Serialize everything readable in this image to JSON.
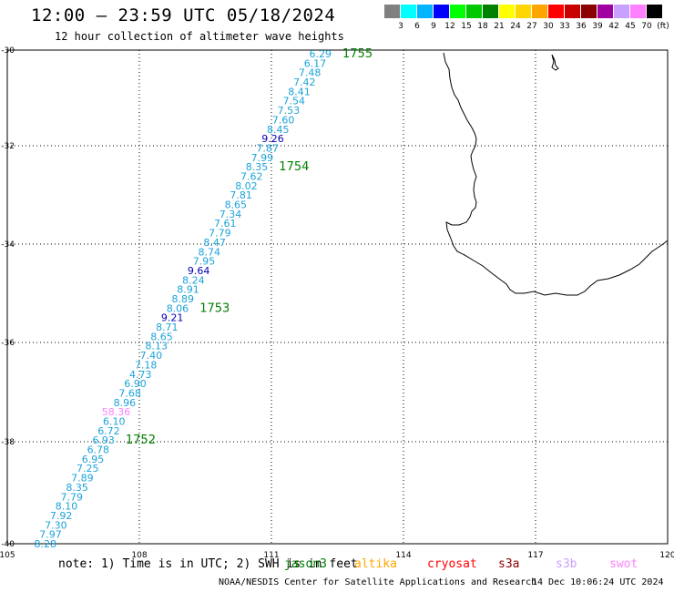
{
  "header": {
    "title": "12:00 — 23:59 UTC 05/18/2024",
    "subtitle": "12 hour collection of altimeter wave heights"
  },
  "colorbar": {
    "units": "(ft)",
    "colors": [
      "#808080",
      "#00ffff",
      "#00b4ff",
      "#0000ff",
      "#00ff00",
      "#00c800",
      "#008000",
      "#ffff00",
      "#ffd700",
      "#ffa500",
      "#ff0000",
      "#c80000",
      "#8b0000",
      "#a000a0",
      "#c8a0ff",
      "#ff80ff",
      "#000000"
    ],
    "labels": [
      "3",
      "6",
      "9",
      "12",
      "15",
      "18",
      "21",
      "24",
      "27",
      "30",
      "33",
      "36",
      "39",
      "42",
      "45",
      "70"
    ]
  },
  "axes": {
    "lon_ticks": [
      "105",
      "108",
      "111",
      "114",
      "117",
      "120"
    ],
    "lat_ticks": [
      "-30",
      "-32",
      "-34",
      "-36",
      "-38",
      "-40"
    ]
  },
  "time_labels": [
    "1755",
    "1754",
    "1753",
    "1752"
  ],
  "track_values": [
    "6.29",
    "6.17",
    "7.48",
    "7.42",
    "8.41",
    "7.54",
    "7.53",
    "7.60",
    "8.45",
    "9.26",
    "7.87",
    "7.99",
    "8.35",
    "7.62",
    "8.02",
    "7.81",
    "8.65",
    "7.34",
    "7.61",
    "7.79",
    "8.47",
    "8.74",
    "7.95",
    "9.64",
    "8.24",
    "8.91",
    "8.89",
    "8.06",
    "9.21",
    "8.71",
    "8.65",
    "8.13",
    "7.40",
    "7.18",
    "4.73",
    "6.90",
    "7.68",
    "8.96",
    "58.36",
    "6.10",
    "6.72",
    "6.93",
    "6.78",
    "6.95",
    "7.25",
    "7.89",
    "8.35",
    "7.79",
    "8.10",
    "7.92",
    "7.30",
    "7.97",
    "8.28"
  ],
  "track_colors": {
    "normal": "#1ba3d8",
    "dark": "#0000b4",
    "high": "#ff80ff",
    "time": "#008000"
  },
  "footer": {
    "note": "note: 1) Time is in UTC; 2) SWH is in feet",
    "satellites": [
      {
        "name": "jason3",
        "color": "#008000"
      },
      {
        "name": "altika",
        "color": "#ffa500"
      },
      {
        "name": "cryosat",
        "color": "#ff0000"
      },
      {
        "name": "s3a",
        "color": "#8b0000"
      },
      {
        "name": "s3b",
        "color": "#c8a0ff"
      },
      {
        "name": "swot",
        "color": "#ff80ff"
      }
    ],
    "credit": "NOAA/NESDIS Center for Satellite Applications and Research",
    "generated": "14 Dec 10:06:24 UTC 2024"
  }
}
